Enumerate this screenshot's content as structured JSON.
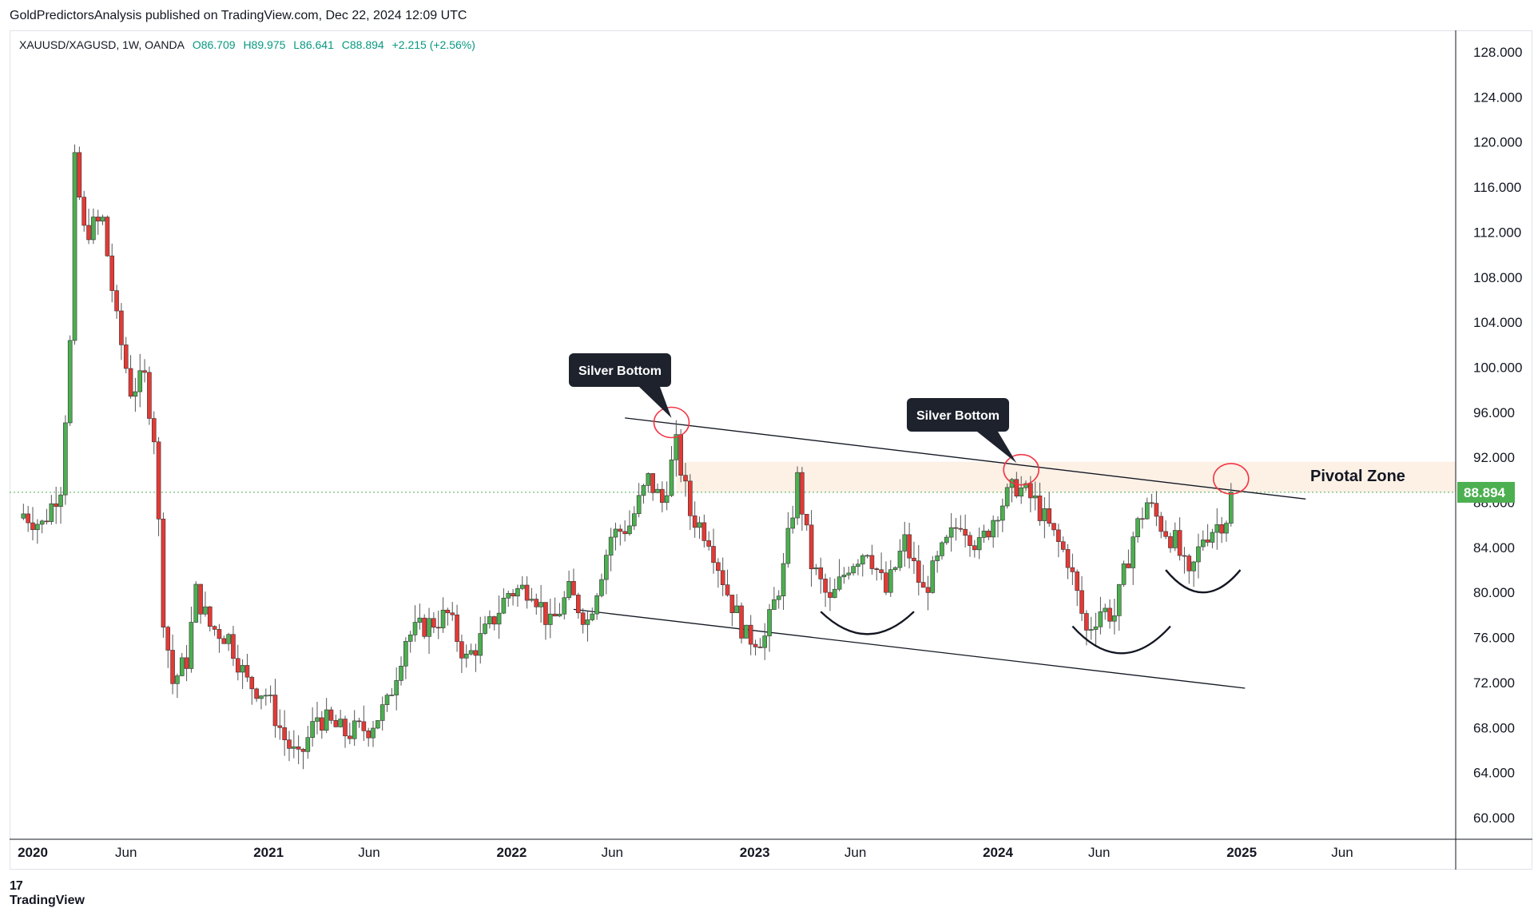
{
  "header": {
    "publisher_line": "GoldPredictorsAnalysis published on TradingView.com, Dec 22, 2024 12:09 UTC"
  },
  "legend": {
    "symbol": "XAUUSD/XAGUSD, 1W, OANDA",
    "open": "O86.709",
    "high": "H89.975",
    "low": "L86.641",
    "close": "C88.894",
    "change": "+2.215 (+2.56%)"
  },
  "footer": {
    "brand": "TradingView",
    "logo_mark": "17"
  },
  "colors": {
    "up": "#089981",
    "down": "#f23645",
    "candle_up": "#4caf50",
    "candle_down": "#e53935",
    "price_line": "#4caf50",
    "pivot_zone": "#fdf1e6",
    "callout_bg": "#1e222d",
    "circle": "#f23645"
  },
  "chart_data": {
    "type": "candlestick",
    "symbol": "XAUUSD/XAGUSD",
    "interval": "1W",
    "ylim": [
      58.0,
      130.0
    ],
    "y_ticks": [
      "128.000",
      "124.000",
      "120.000",
      "116.000",
      "112.000",
      "108.000",
      "104.000",
      "100.000",
      "96.000",
      "92.000",
      "88.000",
      "84.000",
      "80.000",
      "76.000",
      "72.000",
      "68.000",
      "64.000",
      "60.000"
    ],
    "x_ticks": [
      {
        "label": "2020",
        "date": "2020-01-01",
        "bold": true
      },
      {
        "label": "Jun",
        "date": "2020-06-01",
        "bold": false
      },
      {
        "label": "2021",
        "date": "2021-01-01",
        "bold": true
      },
      {
        "label": "Jun",
        "date": "2021-06-01",
        "bold": false
      },
      {
        "label": "2022",
        "date": "2022-01-01",
        "bold": true
      },
      {
        "label": "Jun",
        "date": "2022-06-01",
        "bold": false
      },
      {
        "label": "2023",
        "date": "2023-01-01",
        "bold": true
      },
      {
        "label": "Jun",
        "date": "2023-06-01",
        "bold": false
      },
      {
        "label": "2024",
        "date": "2024-01-01",
        "bold": true
      },
      {
        "label": "Jun",
        "date": "2024-06-01",
        "bold": false
      },
      {
        "label": "2025",
        "date": "2025-01-01",
        "bold": true
      },
      {
        "label": "Jun",
        "date": "2025-06-01",
        "bold": false
      }
    ],
    "last_price": "88.894",
    "last_value": 88.894,
    "closes": [
      {
        "date": "2019-12-30",
        "close": 87.0
      },
      {
        "date": "2020-01-27",
        "close": 86.0
      },
      {
        "date": "2020-02-24",
        "close": 89.5
      },
      {
        "date": "2020-03-09",
        "close": 102.0
      },
      {
        "date": "2020-03-16",
        "close": 118.0
      },
      {
        "date": "2020-03-30",
        "close": 112.0
      },
      {
        "date": "2020-04-27",
        "close": 113.0
      },
      {
        "date": "2020-05-18",
        "close": 104.0
      },
      {
        "date": "2020-06-08",
        "close": 98.0
      },
      {
        "date": "2020-06-29",
        "close": 99.0
      },
      {
        "date": "2020-07-13",
        "close": 94.0
      },
      {
        "date": "2020-07-27",
        "close": 78.0
      },
      {
        "date": "2020-08-10",
        "close": 72.0
      },
      {
        "date": "2020-08-31",
        "close": 74.0
      },
      {
        "date": "2020-09-14",
        "close": 80.0
      },
      {
        "date": "2020-10-05",
        "close": 77.0
      },
      {
        "date": "2020-11-02",
        "close": 76.0
      },
      {
        "date": "2020-11-30",
        "close": 72.0
      },
      {
        "date": "2020-12-28",
        "close": 71.0
      },
      {
        "date": "2021-01-25",
        "close": 67.0
      },
      {
        "date": "2021-02-15",
        "close": 65.0
      },
      {
        "date": "2021-03-15",
        "close": 69.0
      },
      {
        "date": "2021-04-26",
        "close": 67.5
      },
      {
        "date": "2021-05-31",
        "close": 68.0
      },
      {
        "date": "2021-06-28",
        "close": 70.0
      },
      {
        "date": "2021-07-26",
        "close": 76.0
      },
      {
        "date": "2021-08-23",
        "close": 77.0
      },
      {
        "date": "2021-09-27",
        "close": 78.0
      },
      {
        "date": "2021-10-25",
        "close": 74.0
      },
      {
        "date": "2021-11-29",
        "close": 77.0
      },
      {
        "date": "2021-12-27",
        "close": 80.0
      },
      {
        "date": "2022-01-31",
        "close": 80.5
      },
      {
        "date": "2022-02-28",
        "close": 77.0
      },
      {
        "date": "2022-03-28",
        "close": 80.0
      },
      {
        "date": "2022-04-25",
        "close": 77.5
      },
      {
        "date": "2022-05-30",
        "close": 85.0
      },
      {
        "date": "2022-06-27",
        "close": 86.0
      },
      {
        "date": "2022-07-25",
        "close": 90.0
      },
      {
        "date": "2022-08-15",
        "close": 88.0
      },
      {
        "date": "2022-09-05",
        "close": 93.0
      },
      {
        "date": "2022-09-26",
        "close": 87.0
      },
      {
        "date": "2022-10-24",
        "close": 85.0
      },
      {
        "date": "2022-11-21",
        "close": 80.0
      },
      {
        "date": "2022-12-19",
        "close": 76.0
      },
      {
        "date": "2023-01-16",
        "close": 76.0
      },
      {
        "date": "2023-02-13",
        "close": 82.0
      },
      {
        "date": "2023-03-06",
        "close": 90.0
      },
      {
        "date": "2023-03-27",
        "close": 82.5
      },
      {
        "date": "2023-04-24",
        "close": 79.0
      },
      {
        "date": "2023-05-22",
        "close": 82.5
      },
      {
        "date": "2023-06-19",
        "close": 84.0
      },
      {
        "date": "2023-07-17",
        "close": 80.0
      },
      {
        "date": "2023-08-14",
        "close": 84.5
      },
      {
        "date": "2023-09-11",
        "close": 80.0
      },
      {
        "date": "2023-10-09",
        "close": 83.5
      },
      {
        "date": "2023-11-06",
        "close": 86.5
      },
      {
        "date": "2023-12-04",
        "close": 84.0
      },
      {
        "date": "2024-01-01",
        "close": 87.5
      },
      {
        "date": "2024-01-29",
        "close": 89.5
      },
      {
        "date": "2024-02-26",
        "close": 88.0
      },
      {
        "date": "2024-03-25",
        "close": 85.0
      },
      {
        "date": "2024-04-15",
        "close": 83.0
      },
      {
        "date": "2024-05-13",
        "close": 76.5
      },
      {
        "date": "2024-06-03",
        "close": 78.5
      },
      {
        "date": "2024-06-24",
        "close": 78.0
      },
      {
        "date": "2024-07-22",
        "close": 85.0
      },
      {
        "date": "2024-08-12",
        "close": 88.0
      },
      {
        "date": "2024-09-02",
        "close": 86.0
      },
      {
        "date": "2024-09-23",
        "close": 84.5
      },
      {
        "date": "2024-10-14",
        "close": 81.0
      },
      {
        "date": "2024-11-04",
        "close": 85.0
      },
      {
        "date": "2024-11-25",
        "close": 86.0
      },
      {
        "date": "2024-12-09",
        "close": 86.7
      },
      {
        "date": "2024-12-16",
        "close": 88.894
      }
    ],
    "annotations": [
      {
        "text": "Silver Bottom",
        "date": "2022-08-29",
        "value": 96.0
      },
      {
        "text": "Silver Bottom",
        "date": "2024-01-29",
        "value": 92.5
      },
      {
        "text": "Pivotal Zone",
        "from_value": 88.9,
        "to_value": 91.6
      }
    ],
    "trendlines": [
      {
        "from": {
          "date": "2022-06-20",
          "value": 95.5
        },
        "to": {
          "date": "2025-04-07",
          "value": 88.3
        }
      },
      {
        "from": {
          "date": "2022-04-04",
          "value": 78.5
        },
        "to": {
          "date": "2025-01-06",
          "value": 71.5
        }
      }
    ],
    "arcs": [
      {
        "from": {
          "date": "2023-04-10",
          "value": 78.3
        },
        "to": {
          "date": "2023-08-28",
          "value": 78.3
        },
        "bottom_value": 75.8
      },
      {
        "from": {
          "date": "2024-04-22",
          "value": 77.0
        },
        "to": {
          "date": "2024-09-16",
          "value": 77.0
        },
        "bottom_value": 74.0
      },
      {
        "from": {
          "date": "2024-09-09",
          "value": 82.0
        },
        "to": {
          "date": "2024-12-30",
          "value": 82.0
        },
        "bottom_value": 79.5
      }
    ],
    "circled_points": [
      {
        "date": "2022-08-29",
        "value": 95.1
      },
      {
        "date": "2024-02-05",
        "value": 90.9
      },
      {
        "date": "2024-12-16",
        "value": 90.1
      }
    ],
    "grid": false,
    "scale_side": "right"
  }
}
